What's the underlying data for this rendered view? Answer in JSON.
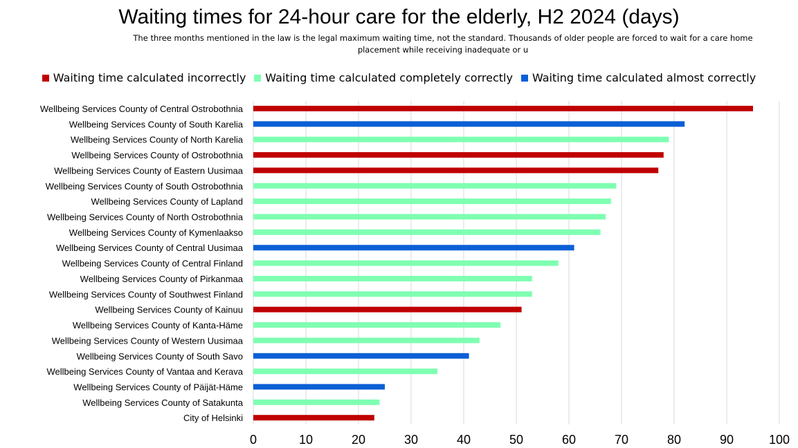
{
  "chart_data": {
    "type": "bar",
    "orientation": "horizontal",
    "title": "Waiting times for 24-hour care for the elderly, H2 2024 (days)",
    "subtitle": "The three months mentioned in the law is the legal maximum waiting time, not the standard. Thousands of older people are forced to wait for a care home placement while receiving inadequate or u",
    "legend_position": "top",
    "xlim": [
      0,
      100
    ],
    "x_ticks": [
      0,
      10,
      20,
      30,
      40,
      50,
      60,
      70,
      80,
      90,
      100
    ],
    "grid": true,
    "legend": [
      {
        "key": "incorrect",
        "label": "Waiting time calculated incorrectly",
        "color": "#c00000"
      },
      {
        "key": "correct",
        "label": "Waiting time calculated completely correctly",
        "color": "#7fffb2"
      },
      {
        "key": "almost",
        "label": "Waiting time calculated almost correctly",
        "color": "#0b5fd6"
      }
    ],
    "bars": [
      {
        "label": "Wellbeing Services County of Central Ostrobothnia",
        "value": 95,
        "category": "incorrect"
      },
      {
        "label": "Wellbeing Services County of South Karelia",
        "value": 82,
        "category": "almost"
      },
      {
        "label": "Wellbeing Services County of North Karelia",
        "value": 79,
        "category": "correct"
      },
      {
        "label": "Wellbeing Services County of Ostrobothnia",
        "value": 78,
        "category": "incorrect"
      },
      {
        "label": "Wellbeing Services County of Eastern Uusimaa",
        "value": 77,
        "category": "incorrect"
      },
      {
        "label": "Wellbeing Services County of South Ostrobothnia",
        "value": 69,
        "category": "correct"
      },
      {
        "label": "Wellbeing Services County of Lapland",
        "value": 68,
        "category": "correct"
      },
      {
        "label": "Wellbeing Services County of North Ostrobothnia",
        "value": 67,
        "category": "correct"
      },
      {
        "label": "Wellbeing Services County of Kymenlaakso",
        "value": 66,
        "category": "correct"
      },
      {
        "label": "Wellbeing Services County of Central Uusimaa",
        "value": 61,
        "category": "almost"
      },
      {
        "label": "Wellbeing Services County of Central Finland",
        "value": 58,
        "category": "correct"
      },
      {
        "label": "Wellbeing Services County of Pirkanmaa",
        "value": 53,
        "category": "correct"
      },
      {
        "label": "Wellbeing Services County of Southwest Finland",
        "value": 53,
        "category": "correct"
      },
      {
        "label": "Wellbeing Services County of Kainuu",
        "value": 51,
        "category": "incorrect"
      },
      {
        "label": "Wellbeing Services County of Kanta-Häme",
        "value": 47,
        "category": "correct"
      },
      {
        "label": "Wellbeing Services County of Western Uusimaa",
        "value": 43,
        "category": "correct"
      },
      {
        "label": "Wellbeing Services County of South Savo",
        "value": 41,
        "category": "almost"
      },
      {
        "label": "Wellbeing Services County of Vantaa and Kerava",
        "value": 35,
        "category": "correct"
      },
      {
        "label": "Wellbeing Services County of Päijät-Häme",
        "value": 25,
        "category": "almost"
      },
      {
        "label": "Wellbeing Services County of Satakunta",
        "value": 24,
        "category": "correct"
      },
      {
        "label": "City of Helsinki",
        "value": 23,
        "category": "incorrect"
      }
    ]
  }
}
